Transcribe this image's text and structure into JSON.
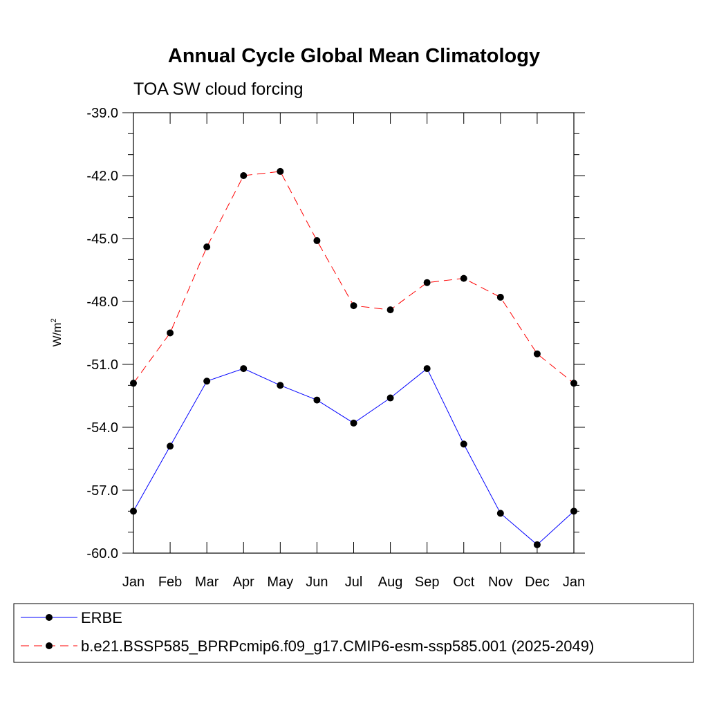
{
  "chart_data": {
    "type": "line",
    "title": "Annual Cycle Global Mean Climatology",
    "subtitle": "TOA SW cloud forcing",
    "xlabel": "",
    "ylabel": "W/m",
    "ylabel_superscript": "2",
    "ylim": [
      -60.0,
      -39.0
    ],
    "yticks": [
      -60.0,
      -57.0,
      -54.0,
      -51.0,
      -48.0,
      -45.0,
      -42.0,
      -39.0
    ],
    "ytick_labels": [
      "-60.0",
      "-57.0",
      "-54.0",
      "-51.0",
      "-48.0",
      "-45.0",
      "-42.0",
      "-39.0"
    ],
    "categories": [
      "Jan",
      "Feb",
      "Mar",
      "Apr",
      "May",
      "Jun",
      "Jul",
      "Aug",
      "Sep",
      "Oct",
      "Nov",
      "Dec",
      "Jan"
    ],
    "series": [
      {
        "name": "ERBE",
        "color": "#0000ff",
        "line_style": "solid",
        "values": [
          -58.0,
          -54.9,
          -51.8,
          -51.2,
          -52.0,
          -52.7,
          -53.8,
          -52.6,
          -51.2,
          -54.8,
          -58.1,
          -59.6,
          -58.0
        ]
      },
      {
        "name": "b.e21.BSSP585_BPRPcmip6.f09_g17.CMIP6-esm-ssp585.001 (2025-2049)",
        "color": "#ff0000",
        "line_style": "dashed",
        "values": [
          -51.9,
          -49.5,
          -45.4,
          -42.0,
          -41.8,
          -45.1,
          -48.2,
          -48.4,
          -47.1,
          -46.9,
          -47.8,
          -50.5,
          -51.9
        ]
      }
    ],
    "marker_color": "#000000",
    "legend_position": "bottom"
  }
}
